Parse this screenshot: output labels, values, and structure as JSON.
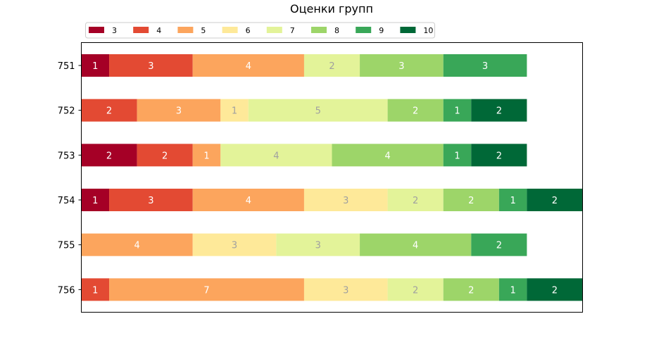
{
  "chart_data": {
    "type": "bar",
    "orientation": "horizontal",
    "stacked": true,
    "title": "Оценки групп",
    "categories": [
      "751",
      "752",
      "753",
      "754",
      "755",
      "756"
    ],
    "xlim": [
      0,
      18
    ],
    "grid": false,
    "xaxis_ticks_visible": false,
    "legend": {
      "placement": "top-left",
      "columns": 8
    },
    "series": [
      {
        "name": "3",
        "color": "#a50026",
        "values": [
          1,
          0,
          2,
          1,
          0,
          0
        ]
      },
      {
        "name": "4",
        "color": "#e34a33",
        "values": [
          3,
          2,
          2,
          3,
          0,
          1
        ]
      },
      {
        "name": "5",
        "color": "#fca55d",
        "values": [
          4,
          3,
          1,
          4,
          4,
          7
        ]
      },
      {
        "name": "6",
        "color": "#fee999",
        "values": [
          0,
          1,
          0,
          3,
          3,
          3
        ]
      },
      {
        "name": "7",
        "color": "#e3f399",
        "values": [
          2,
          5,
          4,
          2,
          3,
          2
        ]
      },
      {
        "name": "8",
        "color": "#9dd569",
        "values": [
          3,
          2,
          4,
          2,
          4,
          2
        ]
      },
      {
        "name": "9",
        "color": "#39a758",
        "values": [
          3,
          1,
          1,
          1,
          2,
          1
        ]
      },
      {
        "name": "10",
        "color": "#006837",
        "values": [
          0,
          2,
          2,
          2,
          0,
          2
        ]
      }
    ],
    "label_colors": {
      "dark": "#ffffff",
      "light": "#a0a0a0"
    }
  }
}
